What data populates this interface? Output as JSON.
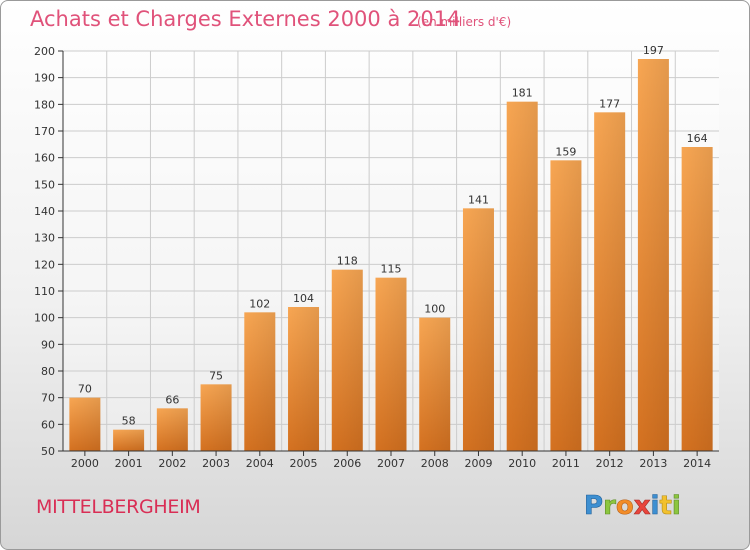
{
  "title": "Achats et Charges Externes 2000 à 2014",
  "subtitle": "(en milliers d'€)",
  "commune": "MITTELBERGHEIM",
  "logo_text": "Proxiti",
  "colors": {
    "title": "#e0527a",
    "commune": "#d92e55",
    "bar_light": "#f7a653",
    "bar_dark": "#d47120",
    "axis": "#333333",
    "grid": "#cccccc"
  },
  "chart_data": {
    "type": "bar",
    "categories": [
      "2000",
      "2001",
      "2002",
      "2003",
      "2004",
      "2005",
      "2006",
      "2007",
      "2008",
      "2009",
      "2010",
      "2011",
      "2012",
      "2013",
      "2014"
    ],
    "values": [
      70,
      58,
      66,
      75,
      102,
      104,
      118,
      115,
      100,
      141,
      181,
      159,
      177,
      197,
      164
    ],
    "ylim": [
      50,
      200
    ],
    "yticks": [
      50,
      60,
      70,
      80,
      90,
      100,
      110,
      120,
      130,
      140,
      150,
      160,
      170,
      180,
      190,
      200
    ],
    "grid": true,
    "data_labels": true
  }
}
